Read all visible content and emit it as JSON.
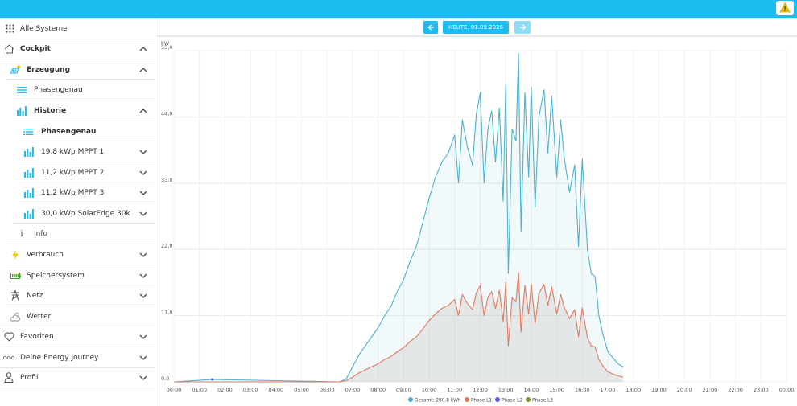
{
  "sidebar": {
    "all_systems": "Alle Systeme",
    "cockpit": "Cockpit",
    "erzeugung": "Erzeugung",
    "phasengenau_1": "Phasengenau",
    "historie": "Historie",
    "phasengenau_2": "Phasengenau",
    "mppt1": "19,8 kWp MPPT 1",
    "mppt2": "11,2 kWp MPPT 2",
    "mppt3": "11,2 kWp MPPT 3",
    "solaredge": "30,0 kWp SolarEdge 30k",
    "info": "Info",
    "verbrauch": "Verbrauch",
    "speicher": "Speichersystem",
    "netz": "Netz",
    "wetter": "Wetter",
    "favoriten": "Favoriten",
    "journey": "Deine Energy Journey",
    "profil": "Profil"
  },
  "datenav": {
    "date_label": "HEUTE, 01.09.2026"
  },
  "colors": {
    "accent": "#1bbcf0",
    "gesamt": "#4bb3cf",
    "phase_l1": "#e07a5f",
    "phase_l2": "#5b5bd6",
    "phase_l3": "#8a8a2a"
  },
  "chart_data": {
    "type": "line",
    "unit_label": "kW",
    "ylim": [
      0,
      55
    ],
    "yticks": [
      "0,0",
      "11,0",
      "22,0",
      "33,0",
      "44,0",
      "55,0"
    ],
    "xticks": [
      "00:00",
      "01:00",
      "02:00",
      "03:00",
      "04:00",
      "05:00",
      "06:00",
      "07:00",
      "08:00",
      "09:00",
      "10:00",
      "11:00",
      "12:00",
      "13:00",
      "14:00",
      "15:00",
      "16:00",
      "17:00",
      "18:00",
      "19:00",
      "20:00",
      "21:00",
      "22:00",
      "23:00",
      "00:00"
    ],
    "grid": true,
    "legend_position": "bottom",
    "legend": [
      "Gesamt: 280,8 kWh",
      "Phase L1",
      "Phase L2",
      "Phase L3"
    ],
    "series": [
      {
        "name": "Gesamt",
        "x": [
          0,
          1.5,
          6.5,
          6.75,
          7.0,
          7.25,
          7.5,
          7.75,
          8.0,
          8.25,
          8.5,
          8.75,
          9.0,
          9.25,
          9.5,
          9.75,
          10.0,
          10.25,
          10.5,
          10.75,
          11.0,
          11.15,
          11.3,
          11.5,
          11.7,
          11.85,
          12.0,
          12.15,
          12.3,
          12.45,
          12.6,
          12.75,
          12.9,
          13.0,
          13.1,
          13.25,
          13.4,
          13.5,
          13.6,
          13.75,
          13.9,
          14.0,
          14.15,
          14.3,
          14.5,
          14.65,
          14.8,
          15.0,
          15.15,
          15.3,
          15.5,
          15.7,
          15.85,
          16.0,
          16.2,
          16.35,
          16.5,
          16.65,
          16.8,
          17.0,
          17.2,
          17.4,
          17.6
        ],
        "values": [
          0,
          0.4,
          0,
          0.5,
          2.5,
          4.5,
          6.0,
          7.5,
          9.0,
          11.0,
          12.5,
          15.0,
          17.0,
          20.0,
          22.5,
          26.5,
          30.5,
          34.0,
          36.5,
          38.0,
          41.0,
          33.0,
          43.5,
          39.0,
          36.0,
          44.5,
          48.0,
          33.0,
          42.0,
          45.0,
          36.5,
          45.5,
          30.0,
          49.5,
          18.0,
          42.0,
          40.0,
          54.5,
          25.0,
          48.0,
          34.0,
          49.0,
          29.0,
          44.0,
          48.5,
          38.0,
          47.5,
          34.0,
          43.5,
          37.0,
          31.5,
          36.0,
          22.5,
          37.0,
          22.0,
          18.0,
          17.5,
          11.0,
          8.0,
          5.0,
          4.0,
          3.0,
          2.5
        ]
      },
      {
        "name": "Phase L1",
        "x": [
          0,
          6.5,
          6.75,
          7.0,
          7.25,
          7.5,
          7.75,
          8.0,
          8.25,
          8.5,
          8.75,
          9.0,
          9.25,
          9.5,
          9.75,
          10.0,
          10.25,
          10.5,
          10.75,
          11.0,
          11.15,
          11.3,
          11.5,
          11.7,
          11.85,
          12.0,
          12.15,
          12.3,
          12.45,
          12.6,
          12.75,
          12.9,
          13.0,
          13.1,
          13.25,
          13.4,
          13.5,
          13.6,
          13.75,
          13.9,
          14.0,
          14.15,
          14.3,
          14.5,
          14.65,
          14.8,
          15.0,
          15.15,
          15.3,
          15.5,
          15.7,
          15.85,
          16.0,
          16.2,
          16.35,
          16.5,
          16.65,
          16.8,
          17.0,
          17.2,
          17.4,
          17.6
        ],
        "values": [
          0,
          0,
          0.2,
          0.8,
          1.5,
          2.0,
          2.5,
          3.0,
          3.7,
          4.2,
          5.0,
          5.7,
          6.7,
          7.5,
          8.8,
          10.2,
          11.3,
          12.2,
          12.7,
          13.7,
          11.0,
          14.5,
          13.0,
          12.0,
          14.8,
          16.0,
          11.0,
          14.0,
          15.0,
          12.2,
          15.2,
          10.0,
          16.5,
          6.0,
          14.0,
          13.3,
          18.2,
          8.3,
          16.0,
          11.3,
          16.3,
          9.7,
          14.7,
          16.2,
          12.7,
          15.8,
          11.3,
          14.5,
          12.3,
          10.5,
          12.0,
          7.5,
          12.3,
          7.3,
          6.0,
          5.8,
          3.7,
          2.7,
          1.7,
          1.3,
          1.0,
          0.8
        ]
      },
      {
        "name": "Phase L2",
        "values": []
      },
      {
        "name": "Phase L3",
        "values": []
      }
    ]
  }
}
